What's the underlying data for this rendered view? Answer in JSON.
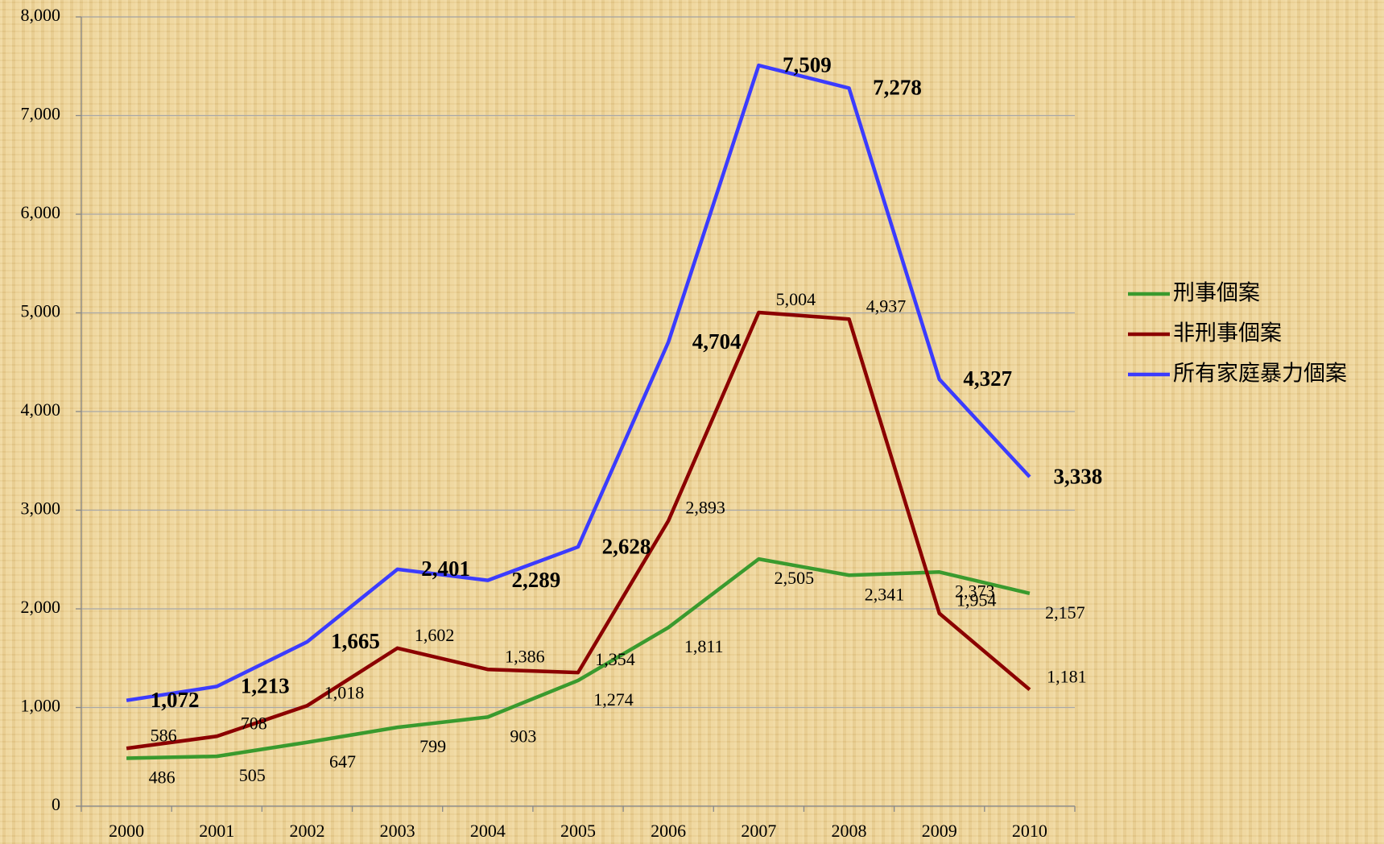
{
  "chart_data": {
    "type": "line",
    "categories": [
      "2000",
      "2001",
      "2002",
      "2003",
      "2004",
      "2005",
      "2006",
      "2007",
      "2008",
      "2009",
      "2010"
    ],
    "series": [
      {
        "name": "刑事個案",
        "color": "#3a9a2e",
        "values": [
          486,
          505,
          647,
          799,
          903,
          1274,
          1811,
          2505,
          2341,
          2373,
          2157
        ],
        "value_labels": [
          "486",
          "505",
          "647",
          "799",
          "903",
          "1,274",
          "1,811",
          "2,505",
          "2,341",
          "2,373",
          "2,157"
        ]
      },
      {
        "name": "非刑事個案",
        "color": "#8b0000",
        "values": [
          586,
          708,
          1018,
          1602,
          1386,
          1354,
          2893,
          5004,
          4937,
          1954,
          1181
        ],
        "value_labels": [
          "586",
          "708",
          "1,018",
          "1,602",
          "1,386",
          "1,354",
          "2,893",
          "5,004",
          "4,937",
          "1,954",
          "1,181"
        ]
      },
      {
        "name": "所有家庭暴力個案",
        "color": "#3b3bff",
        "values": [
          1072,
          1213,
          1665,
          2401,
          2289,
          2628,
          4704,
          7509,
          7278,
          4327,
          3338
        ],
        "value_labels": [
          "1,072",
          "1,213",
          "1,665",
          "2,401",
          "2,289",
          "2,628",
          "4,704",
          "7,509",
          "7,278",
          "4,327",
          "3,338"
        ]
      }
    ],
    "ylim": [
      0,
      8000
    ],
    "yticks": [
      0,
      {
        "value": 1000,
        "label": "1,000"
      },
      {
        "value": 2000,
        "label": "2,000"
      },
      {
        "value": 3000,
        "label": "3,000"
      },
      {
        "value": 4000,
        "label": "4,000"
      },
      {
        "value": 5000,
        "label": "5,000"
      },
      {
        "value": 6000,
        "label": "6,000"
      },
      {
        "value": 7000,
        "label": "7,000"
      },
      {
        "value": 8000,
        "label": "8,000"
      }
    ],
    "grid": true,
    "legend": "right"
  }
}
